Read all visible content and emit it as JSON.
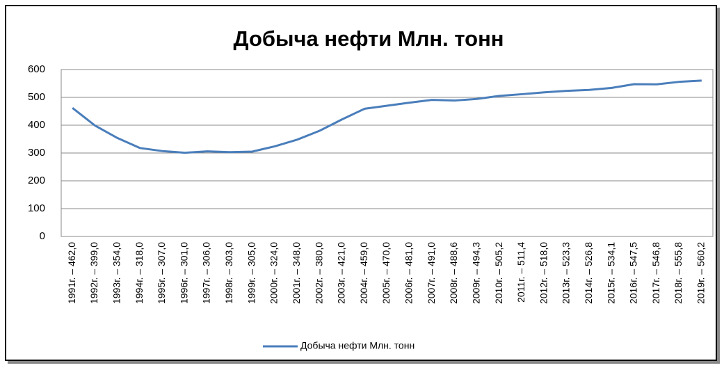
{
  "chart_data": {
    "type": "line",
    "title": "Добыча нефти Млн. тонн",
    "categories": [
      "1991г. – 462,0",
      "1992г. – 399,0",
      "1993г. – 354,0",
      "1994г. – 318,0",
      "1995г. – 307,0",
      "1996г. – 301,0",
      "1997г. – 306,0",
      "1998г. – 303,0",
      "1999г. – 305,0",
      "2000г. – 324,0",
      "2001г. – 348,0",
      "2002г. – 380,0",
      "2003г. – 421,0",
      "2004г. – 459,0",
      "2005г. – 470,0",
      "2006г. – 481,0",
      "2007г. – 491,0",
      "2008г. – 488,6",
      "2009г. – 494,3",
      "2010г. – 505,2",
      "2011г. – 511,4",
      "2012г. – 518,0",
      "2013г. – 523,3",
      "2014г. – 526,8",
      "2015г. – 534,1",
      "2016г. – 547,5",
      "2017г. – 546,8",
      "2018г. – 555,8",
      "2019г. – 560,2"
    ],
    "series": [
      {
        "name": "Добыча нефти Млн. тонн",
        "color": "#4a7ebb",
        "values": [
          462,
          399,
          354,
          318,
          307,
          301,
          306,
          303,
          305,
          324,
          348,
          380,
          421,
          459,
          470,
          481,
          491,
          488.6,
          494.3,
          505.2,
          511.4,
          518,
          523.3,
          526.8,
          534.1,
          547.5,
          546.8,
          555.8,
          560.2
        ]
      }
    ],
    "ylim": [
      0,
      600
    ],
    "yticks": [
      0,
      100,
      200,
      300,
      400,
      500,
      600
    ],
    "grid": true,
    "legend": "bottom"
  }
}
